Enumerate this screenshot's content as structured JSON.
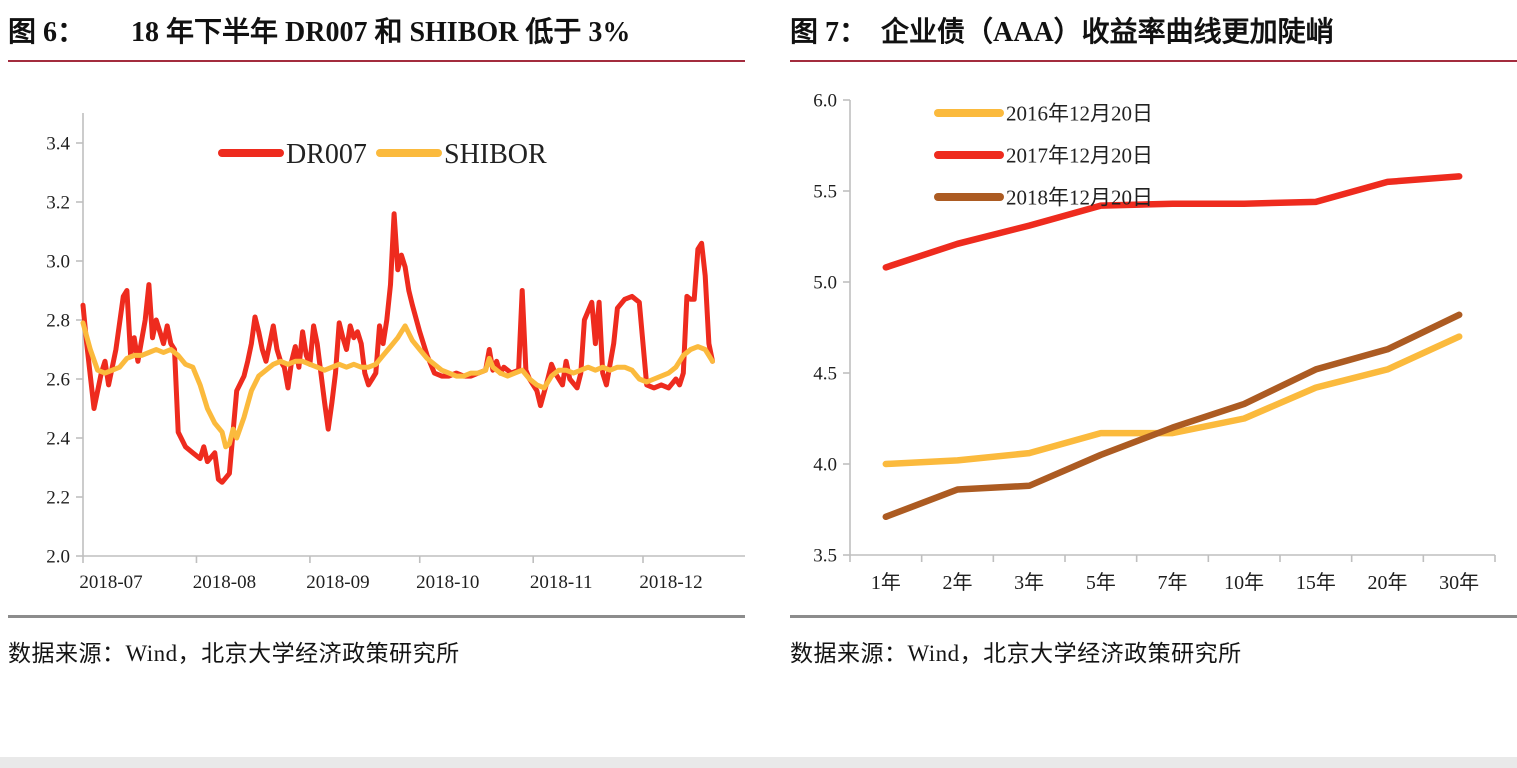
{
  "page": {
    "bottom_bar_color": "#e9e9e9",
    "title_rule_color": "#A32C3E",
    "source_rule_color": "#8C8C8C"
  },
  "figures": [
    {
      "label": "图 6：",
      "title": "18 年下半年 DR007 和 SHIBOR 低于 3%",
      "source": "数据来源：Wind，北京大学经济政策研究所"
    },
    {
      "label": "图 7：",
      "title": "企业债（AAA）收益率曲线更加陡峭",
      "source": "数据来源：Wind，北京大学经济政策研究所"
    }
  ],
  "chart_data": [
    {
      "type": "line",
      "title": "18 年下半年 DR007 和 SHIBOR 低于 3%",
      "xlabel": "",
      "ylabel": "",
      "ylim": [
        2.0,
        3.5
      ],
      "y_ticks": [
        "2.0",
        "2.2",
        "2.4",
        "2.6",
        "2.8",
        "3.0",
        "3.2",
        "3.4"
      ],
      "x_tick_labels": [
        "2018-07",
        "2018-08",
        "2018-09",
        "2018-10",
        "2018-11",
        "2018-12"
      ],
      "x_tick_days": [
        0,
        31,
        62,
        92,
        123,
        153
      ],
      "x_domain_days": [
        0,
        172
      ],
      "grid": false,
      "legend_position": "top-center",
      "series": [
        {
          "name": "DR007",
          "color": "#EE2B1E",
          "points": [
            [
              0,
              2.85
            ],
            [
              1,
              2.72
            ],
            [
              3,
              2.5
            ],
            [
              5,
              2.62
            ],
            [
              6,
              2.66
            ],
            [
              7,
              2.58
            ],
            [
              9,
              2.7
            ],
            [
              11,
              2.88
            ],
            [
              12,
              2.9
            ],
            [
              13,
              2.68
            ],
            [
              14,
              2.74
            ],
            [
              15,
              2.66
            ],
            [
              17,
              2.8
            ],
            [
              18,
              2.92
            ],
            [
              19,
              2.74
            ],
            [
              20,
              2.8
            ],
            [
              21,
              2.76
            ],
            [
              22,
              2.72
            ],
            [
              23,
              2.78
            ],
            [
              24,
              2.72
            ],
            [
              25,
              2.7
            ],
            [
              26,
              2.42
            ],
            [
              28,
              2.37
            ],
            [
              30,
              2.35
            ],
            [
              32,
              2.33
            ],
            [
              33,
              2.37
            ],
            [
              34,
              2.32
            ],
            [
              36,
              2.35
            ],
            [
              37,
              2.26
            ],
            [
              38,
              2.25
            ],
            [
              40,
              2.28
            ],
            [
              42,
              2.56
            ],
            [
              44,
              2.61
            ],
            [
              45,
              2.66
            ],
            [
              46,
              2.72
            ],
            [
              47,
              2.81
            ],
            [
              48,
              2.76
            ],
            [
              49,
              2.7
            ],
            [
              50,
              2.66
            ],
            [
              51,
              2.72
            ],
            [
              52,
              2.78
            ],
            [
              53,
              2.7
            ],
            [
              54,
              2.66
            ],
            [
              55,
              2.64
            ],
            [
              56,
              2.57
            ],
            [
              57,
              2.66
            ],
            [
              58,
              2.71
            ],
            [
              59,
              2.64
            ],
            [
              60,
              2.76
            ],
            [
              61,
              2.68
            ],
            [
              62,
              2.65
            ],
            [
              63,
              2.78
            ],
            [
              64,
              2.72
            ],
            [
              65,
              2.62
            ],
            [
              66,
              2.52
            ],
            [
              67,
              2.43
            ],
            [
              68,
              2.52
            ],
            [
              69,
              2.62
            ],
            [
              70,
              2.79
            ],
            [
              71,
              2.74
            ],
            [
              72,
              2.7
            ],
            [
              73,
              2.78
            ],
            [
              74,
              2.74
            ],
            [
              75,
              2.76
            ],
            [
              76,
              2.72
            ],
            [
              77,
              2.62
            ],
            [
              78,
              2.58
            ],
            [
              79,
              2.6
            ],
            [
              80,
              2.62
            ],
            [
              81,
              2.78
            ],
            [
              82,
              2.72
            ],
            [
              83,
              2.8
            ],
            [
              84,
              2.92
            ],
            [
              85,
              3.16
            ],
            [
              86,
              2.97
            ],
            [
              87,
              3.02
            ],
            [
              88,
              2.98
            ],
            [
              89,
              2.9
            ],
            [
              90,
              2.85
            ],
            [
              92,
              2.76
            ],
            [
              94,
              2.68
            ],
            [
              96,
              2.62
            ],
            [
              98,
              2.61
            ],
            [
              100,
              2.61
            ],
            [
              102,
              2.62
            ],
            [
              104,
              2.61
            ],
            [
              106,
              2.61
            ],
            [
              108,
              2.62
            ],
            [
              110,
              2.63
            ],
            [
              111,
              2.7
            ],
            [
              112,
              2.63
            ],
            [
              113,
              2.66
            ],
            [
              114,
              2.62
            ],
            [
              115,
              2.64
            ],
            [
              117,
              2.62
            ],
            [
              119,
              2.63
            ],
            [
              120,
              2.9
            ],
            [
              121,
              2.63
            ],
            [
              122,
              2.6
            ],
            [
              124,
              2.56
            ],
            [
              125,
              2.51
            ],
            [
              127,
              2.6
            ],
            [
              128,
              2.65
            ],
            [
              129,
              2.62
            ],
            [
              131,
              2.58
            ],
            [
              132,
              2.66
            ],
            [
              133,
              2.6
            ],
            [
              135,
              2.57
            ],
            [
              136,
              2.62
            ],
            [
              137,
              2.8
            ],
            [
              139,
              2.86
            ],
            [
              140,
              2.72
            ],
            [
              141,
              2.86
            ],
            [
              142,
              2.62
            ],
            [
              143,
              2.58
            ],
            [
              145,
              2.72
            ],
            [
              146,
              2.84
            ],
            [
              148,
              2.87
            ],
            [
              150,
              2.88
            ],
            [
              152,
              2.86
            ],
            [
              154,
              2.58
            ],
            [
              156,
              2.57
            ],
            [
              158,
              2.58
            ],
            [
              160,
              2.57
            ],
            [
              162,
              2.6
            ],
            [
              163,
              2.58
            ],
            [
              164,
              2.62
            ],
            [
              165,
              2.88
            ],
            [
              166,
              2.87
            ],
            [
              167,
              2.87
            ],
            [
              168,
              3.04
            ],
            [
              169,
              3.06
            ],
            [
              170,
              2.95
            ],
            [
              171,
              2.72
            ],
            [
              172,
              2.66
            ]
          ]
        },
        {
          "name": "SHIBOR",
          "color": "#FBBA3D",
          "points": [
            [
              0,
              2.79
            ],
            [
              2,
              2.7
            ],
            [
              4,
              2.63
            ],
            [
              6,
              2.62
            ],
            [
              8,
              2.63
            ],
            [
              10,
              2.64
            ],
            [
              12,
              2.67
            ],
            [
              14,
              2.68
            ],
            [
              16,
              2.68
            ],
            [
              18,
              2.69
            ],
            [
              20,
              2.7
            ],
            [
              22,
              2.69
            ],
            [
              24,
              2.7
            ],
            [
              26,
              2.68
            ],
            [
              28,
              2.65
            ],
            [
              30,
              2.64
            ],
            [
              32,
              2.58
            ],
            [
              34,
              2.5
            ],
            [
              36,
              2.45
            ],
            [
              38,
              2.42
            ],
            [
              39,
              2.37
            ],
            [
              40,
              2.38
            ],
            [
              41,
              2.43
            ],
            [
              42,
              2.4
            ],
            [
              44,
              2.47
            ],
            [
              46,
              2.56
            ],
            [
              48,
              2.61
            ],
            [
              50,
              2.63
            ],
            [
              52,
              2.65
            ],
            [
              54,
              2.66
            ],
            [
              56,
              2.65
            ],
            [
              58,
              2.66
            ],
            [
              60,
              2.66
            ],
            [
              62,
              2.65
            ],
            [
              64,
              2.64
            ],
            [
              66,
              2.63
            ],
            [
              68,
              2.64
            ],
            [
              70,
              2.65
            ],
            [
              72,
              2.64
            ],
            [
              74,
              2.65
            ],
            [
              76,
              2.64
            ],
            [
              78,
              2.64
            ],
            [
              80,
              2.65
            ],
            [
              82,
              2.68
            ],
            [
              84,
              2.71
            ],
            [
              86,
              2.74
            ],
            [
              88,
              2.78
            ],
            [
              90,
              2.73
            ],
            [
              92,
              2.7
            ],
            [
              94,
              2.67
            ],
            [
              96,
              2.65
            ],
            [
              98,
              2.63
            ],
            [
              100,
              2.62
            ],
            [
              102,
              2.61
            ],
            [
              104,
              2.61
            ],
            [
              106,
              2.62
            ],
            [
              108,
              2.62
            ],
            [
              110,
              2.63
            ],
            [
              111,
              2.67
            ],
            [
              112,
              2.64
            ],
            [
              114,
              2.62
            ],
            [
              116,
              2.61
            ],
            [
              118,
              2.62
            ],
            [
              120,
              2.63
            ],
            [
              122,
              2.6
            ],
            [
              124,
              2.58
            ],
            [
              126,
              2.57
            ],
            [
              128,
              2.61
            ],
            [
              130,
              2.63
            ],
            [
              132,
              2.63
            ],
            [
              134,
              2.62
            ],
            [
              136,
              2.63
            ],
            [
              138,
              2.64
            ],
            [
              140,
              2.63
            ],
            [
              142,
              2.64
            ],
            [
              144,
              2.63
            ],
            [
              146,
              2.64
            ],
            [
              148,
              2.64
            ],
            [
              150,
              2.63
            ],
            [
              152,
              2.6
            ],
            [
              154,
              2.59
            ],
            [
              156,
              2.6
            ],
            [
              158,
              2.61
            ],
            [
              160,
              2.62
            ],
            [
              162,
              2.64
            ],
            [
              164,
              2.68
            ],
            [
              166,
              2.7
            ],
            [
              168,
              2.71
            ],
            [
              170,
              2.7
            ],
            [
              172,
              2.66
            ]
          ]
        }
      ]
    },
    {
      "type": "line",
      "title": "企业债（AAA）收益率曲线更加陡峭",
      "xlabel": "",
      "ylabel": "",
      "ylim": [
        3.5,
        6.0
      ],
      "y_ticks": [
        "3.5",
        "4.0",
        "4.5",
        "5.0",
        "5.5",
        "6.0"
      ],
      "categories": [
        "1年",
        "2年",
        "3年",
        "5年",
        "7年",
        "10年",
        "15年",
        "20年",
        "30年"
      ],
      "grid": false,
      "legend_position": "top-left-inside",
      "series": [
        {
          "name": "2016年12月20日",
          "color": "#FBBA3D",
          "values": [
            4.0,
            4.02,
            4.06,
            4.17,
            4.17,
            4.25,
            4.42,
            4.52,
            4.7
          ]
        },
        {
          "name": "2017年12月20日",
          "color": "#EE2B1E",
          "values": [
            5.08,
            5.21,
            5.31,
            5.42,
            5.43,
            5.43,
            5.44,
            5.55,
            5.58
          ]
        },
        {
          "name": "2018年12月20日",
          "color": "#AC5B22",
          "values": [
            3.71,
            3.86,
            3.88,
            4.05,
            4.2,
            4.33,
            4.52,
            4.63,
            4.82
          ]
        }
      ]
    }
  ]
}
